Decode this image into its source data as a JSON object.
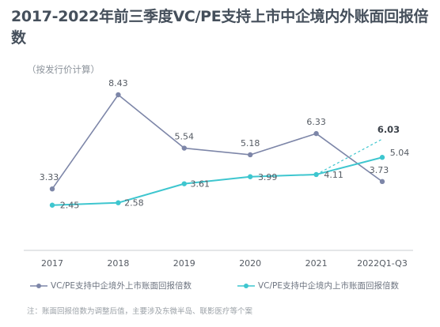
{
  "title": "2017-2022年前三季度VC/PE支持上市中企境内外账面回报倍数",
  "subtitle": "（按发行价计算）",
  "note": "注：账面回报倍数为调整后值，主要涉及东微半岛、联影医疗等个案",
  "colors": {
    "series1": "#7d86a8",
    "series2": "#3ec6cf",
    "title": "#454f5b",
    "axis": "#c9ccd1",
    "label": "#555b63"
  },
  "chart_data": {
    "type": "line",
    "categories": [
      "2017",
      "2018",
      "2019",
      "2020",
      "2021",
      "2022Q1-Q3"
    ],
    "series": [
      {
        "name": "VC/PE支持中企境外上市账面回报倍数",
        "values": [
          3.33,
          8.43,
          5.54,
          5.18,
          6.33,
          3.73
        ],
        "labels": [
          "3.33",
          "8.43",
          "5.54",
          "5.18",
          "6.33",
          "3.73"
        ],
        "marker": "circle"
      },
      {
        "name": "VC/PE支持中企境内上市账面回报倍数",
        "values": [
          2.45,
          2.58,
          3.61,
          3.99,
          4.11,
          5.04
        ],
        "labels": [
          "2.45",
          "2.58",
          "3.61",
          "3.99",
          "4.11",
          "5.04"
        ],
        "marker": "circle"
      }
    ],
    "annotation": {
      "value": 6.03,
      "label": "6.03",
      "bold": true,
      "from_category": "2021",
      "from_value": 4.11,
      "to_category": "2022Q1-Q3",
      "dashed": true
    },
    "ylim": [
      0,
      9.5
    ],
    "grid": false,
    "legend_position": "bottom"
  }
}
